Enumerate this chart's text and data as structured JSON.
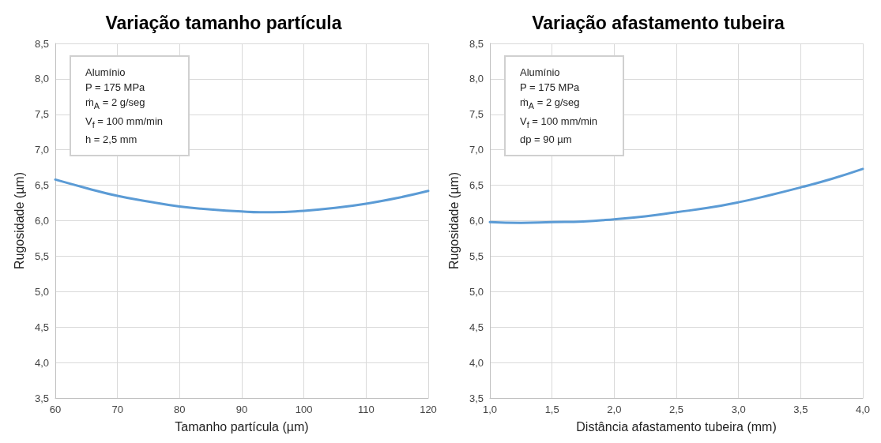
{
  "chart_data": [
    {
      "type": "line",
      "title": "Variação tamanho partícula",
      "xlabel": "Tamanho partícula (µm)",
      "ylabel": "Rugosidade (µm)",
      "x": [
        60,
        65,
        70,
        75,
        80,
        85,
        90,
        93,
        95,
        100,
        105,
        110,
        115,
        120
      ],
      "series": [
        {
          "color": "#5b9bd5",
          "values": [
            6.58,
            6.46,
            6.35,
            6.27,
            6.2,
            6.16,
            6.13,
            6.12,
            6.12,
            6.14,
            6.18,
            6.24,
            6.32,
            6.42
          ]
        }
      ],
      "xlim": [
        60,
        120
      ],
      "xticks": [
        60,
        70,
        80,
        90,
        100,
        110,
        120
      ],
      "ylim": [
        3.5,
        8.5
      ],
      "yticks": [
        {
          "value": 3.5,
          "label": "3,5"
        },
        {
          "value": 4,
          "label": "4,0"
        },
        {
          "value": 4.5,
          "label": "4,5"
        },
        {
          "value": 5,
          "label": "5,0"
        },
        {
          "value": 5.5,
          "label": "5,5"
        },
        {
          "value": 6,
          "label": "6,0"
        },
        {
          "value": 6.5,
          "label": "6,5"
        },
        {
          "value": 7,
          "label": "7,0"
        },
        {
          "value": 7.5,
          "label": "7,5"
        },
        {
          "value": 8,
          "label": "8,0"
        },
        {
          "value": 8.5,
          "label": "8,5"
        }
      ],
      "grid": true,
      "marker": "none",
      "line_style": "solid",
      "annotations": [
        "Alumínio",
        "P = 175 MPa",
        "ṁ$_{A}$ = 2 g/seg",
        "V$_{f}$ = 100 mm/min",
        "h = 2,5 mm"
      ]
    },
    {
      "type": "line",
      "title": "Variação afastamento tubeira",
      "xlabel": "Distância afastamento tubeira (mm)",
      "ylabel": "Rugosidade (µm)",
      "x": [
        1.0,
        1.25,
        1.5,
        1.75,
        2.0,
        2.25,
        2.5,
        2.75,
        3.0,
        3.25,
        3.5,
        3.75,
        4.0
      ],
      "series": [
        {
          "color": "#5b9bd5",
          "values": [
            5.98,
            5.97,
            5.98,
            5.99,
            6.02,
            6.06,
            6.12,
            6.18,
            6.26,
            6.36,
            6.47,
            6.59,
            6.73
          ]
        }
      ],
      "xlim": [
        1,
        4
      ],
      "xticks": [
        {
          "value": 1,
          "label": "1,0"
        },
        {
          "value": 1.5,
          "label": "1,5"
        },
        {
          "value": 2,
          "label": "2,0"
        },
        {
          "value": 2.5,
          "label": "2,5"
        },
        {
          "value": 3,
          "label": "3,0"
        },
        {
          "value": 3.5,
          "label": "3,5"
        },
        {
          "value": 4,
          "label": "4,0"
        }
      ],
      "ylim": [
        3.5,
        8.5
      ],
      "yticks": [
        {
          "value": 3.5,
          "label": "3,5"
        },
        {
          "value": 4,
          "label": "4,0"
        },
        {
          "value": 4.5,
          "label": "4,5"
        },
        {
          "value": 5,
          "label": "5,0"
        },
        {
          "value": 5.5,
          "label": "5,5"
        },
        {
          "value": 6,
          "label": "6,0"
        },
        {
          "value": 6.5,
          "label": "6,5"
        },
        {
          "value": 7,
          "label": "7,0"
        },
        {
          "value": 7.5,
          "label": "7,5"
        },
        {
          "value": 8,
          "label": "8,0"
        },
        {
          "value": 8.5,
          "label": "8,5"
        }
      ],
      "grid": true,
      "marker": "none",
      "line_style": "solid",
      "annotations": [
        "Alumínio",
        "P = 175 MPa",
        "ṁ$_{A}$ = 2 g/seg",
        "V$_{f}$ = 100 mm/min",
        "dp = 90 µm"
      ]
    }
  ]
}
